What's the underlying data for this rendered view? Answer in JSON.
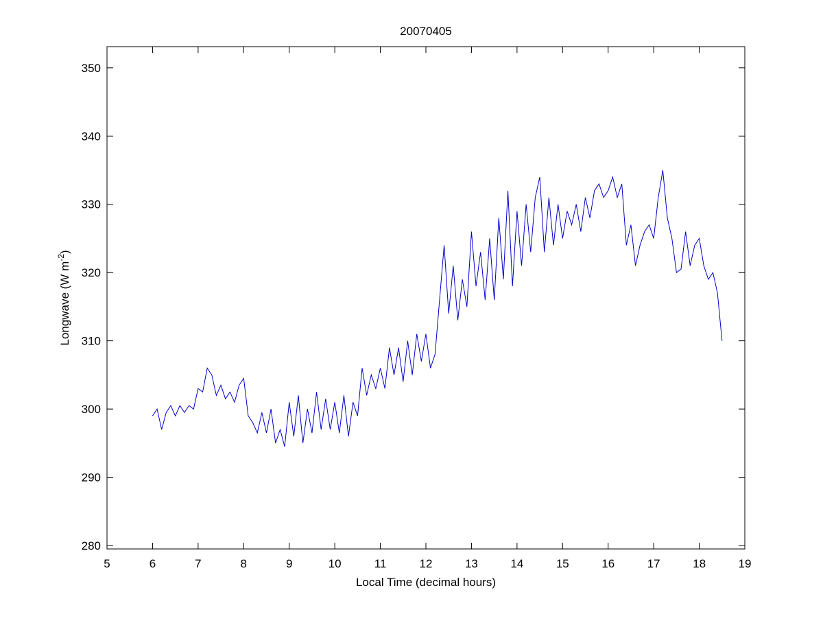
{
  "chart_data": {
    "type": "line",
    "title": "20070405",
    "xlabel": "Local Time (decimal hours)",
    "ylabel": {
      "text": "Longwave (W m",
      "superscript": "-2",
      "suffix": ")"
    },
    "xlim": [
      5,
      19
    ],
    "xticks": [
      5,
      6,
      7,
      8,
      9,
      10,
      11,
      12,
      13,
      14,
      15,
      16,
      17,
      18,
      19
    ],
    "ylim": [
      279.5,
      353.1
    ],
    "yticks": [
      280,
      290,
      300,
      310,
      320,
      330,
      340,
      350
    ],
    "grid": false,
    "series": [
      {
        "color": "#0000cc",
        "x": [
          6.0,
          6.1,
          6.2,
          6.3,
          6.4,
          6.5,
          6.6,
          6.7,
          6.8,
          6.9,
          7.0,
          7.1,
          7.2,
          7.3,
          7.4,
          7.5,
          7.6,
          7.7,
          7.8,
          7.9,
          8.0,
          8.1,
          8.2,
          8.3,
          8.4,
          8.5,
          8.6,
          8.7,
          8.8,
          8.9,
          9.0,
          9.1,
          9.2,
          9.3,
          9.4,
          9.5,
          9.6,
          9.7,
          9.8,
          9.9,
          10.0,
          10.1,
          10.2,
          10.3,
          10.4,
          10.5,
          10.6,
          10.7,
          10.8,
          10.9,
          11.0,
          11.1,
          11.2,
          11.3,
          11.4,
          11.5,
          11.6,
          11.7,
          11.8,
          11.9,
          12.0,
          12.1,
          12.2,
          12.3,
          12.4,
          12.5,
          12.6,
          12.7,
          12.8,
          12.9,
          13.0,
          13.1,
          13.2,
          13.3,
          13.4,
          13.5,
          13.6,
          13.7,
          13.8,
          13.9,
          14.0,
          14.1,
          14.2,
          14.3,
          14.4,
          14.5,
          14.6,
          14.7,
          14.8,
          14.9,
          15.0,
          15.1,
          15.2,
          15.3,
          15.4,
          15.5,
          15.6,
          15.7,
          15.8,
          15.9,
          16.0,
          16.1,
          16.2,
          16.3,
          16.4,
          16.5,
          16.6,
          16.7,
          16.8,
          16.9,
          17.0,
          17.1,
          17.2,
          17.3,
          17.4,
          17.5,
          17.6,
          17.7,
          17.8,
          17.9,
          18.0,
          18.1,
          18.2,
          18.3,
          18.4,
          18.5
        ],
        "values": [
          299,
          300,
          297,
          299.5,
          300.5,
          299,
          300.5,
          299.5,
          300.5,
          300,
          303,
          302.5,
          306,
          305,
          302,
          303.5,
          301.5,
          302.5,
          301,
          303.5,
          304.5,
          299,
          298,
          296.5,
          299.5,
          296.5,
          300,
          295,
          297,
          294.5,
          301,
          296,
          302,
          295,
          300,
          296.5,
          302.5,
          297,
          301.5,
          297,
          301,
          296.5,
          302,
          296,
          301,
          299,
          306,
          302,
          305,
          303,
          306,
          303,
          309,
          305,
          309,
          304,
          310,
          305,
          311,
          307,
          311,
          306,
          308,
          316,
          324,
          314,
          321,
          313,
          319,
          315,
          326,
          318,
          323,
          316,
          325,
          316,
          328,
          319,
          332,
          318,
          329,
          321,
          330,
          323,
          331,
          334,
          323,
          331,
          324,
          330,
          325,
          329,
          327,
          330,
          326,
          331,
          328,
          332,
          333,
          331,
          332,
          334,
          331,
          333,
          324,
          327,
          321,
          324,
          326,
          327,
          325,
          331,
          335,
          328,
          325,
          320,
          320.5,
          326,
          321,
          324,
          325,
          321,
          319,
          320,
          317,
          310
        ]
      }
    ]
  }
}
